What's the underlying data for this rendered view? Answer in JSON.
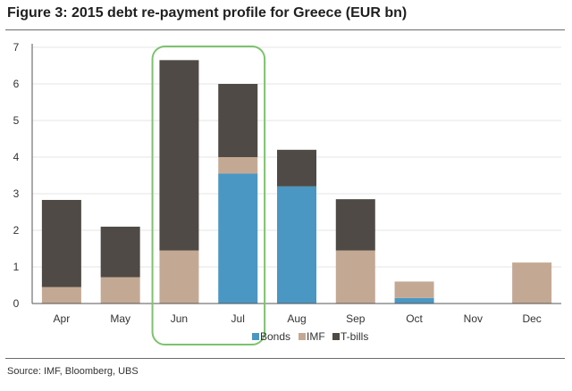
{
  "figure": {
    "title": "Figure 3: 2015 debt re-payment profile for Greece (EUR bn)",
    "source": "Source:  IMF, Bloomberg, UBS"
  },
  "colors": {
    "bonds": "#4a97c3",
    "imf": "#c3a994",
    "tbills": "#4f4a45",
    "highlight": "#7cc36e",
    "axis": "#555555",
    "grid": "#e6e6e6"
  },
  "chart_data": {
    "type": "bar",
    "stacked": true,
    "categories": [
      "Apr",
      "May",
      "Jun",
      "Jul",
      "Aug",
      "Sep",
      "Oct",
      "Nov",
      "Dec"
    ],
    "series": [
      {
        "name": "Bonds",
        "values": [
          0,
          0,
          0,
          3.55,
          3.2,
          0,
          0.15,
          0,
          0
        ]
      },
      {
        "name": "IMF",
        "values": [
          0.45,
          0.72,
          1.45,
          0.45,
          0,
          1.45,
          0.45,
          0,
          1.12
        ]
      },
      {
        "name": "T-bills",
        "values": [
          2.38,
          1.38,
          5.2,
          2.0,
          1.0,
          1.4,
          0,
          0,
          0
        ]
      }
    ],
    "ylim": [
      0,
      7
    ],
    "yticks": [
      "0",
      "1",
      "2",
      "3",
      "4",
      "5",
      "6",
      "7"
    ],
    "legend": [
      "Bonds",
      "IMF",
      "T-bills"
    ],
    "legend_position": "bottom-right",
    "highlight_categories": [
      "Jun",
      "Jul"
    ],
    "grid": true
  }
}
